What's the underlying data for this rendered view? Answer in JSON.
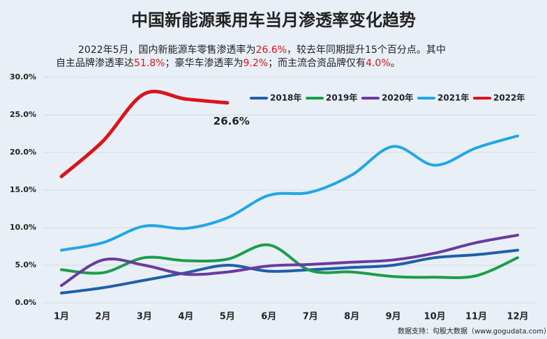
{
  "chart_data": {
    "type": "line",
    "title": "中国新能源乘用车当月渗透率变化趋势",
    "subtitle": [
      [
        "2022年5月，国内新能源车零售渗透率为",
        "26.6%",
        "，较去年同期提升15个百分点。其中"
      ],
      [
        "自主品牌渗透率达",
        "51.8%",
        "；豪华车渗透率为",
        "9.2%",
        "；而主流合资品牌仅有",
        "4.0%",
        "。"
      ]
    ],
    "highlight_color": "#d9141b",
    "categories": [
      "1月",
      "2月",
      "3月",
      "4月",
      "5月",
      "6月",
      "7月",
      "8月",
      "9月",
      "10月",
      "11月",
      "12月"
    ],
    "series": [
      {
        "name": "2018年",
        "color": "#1f5fa8",
        "values": [
          1.3,
          2.0,
          3.0,
          4.0,
          5.0,
          4.2,
          4.4,
          4.7,
          5.0,
          6.0,
          6.4,
          7.0
        ]
      },
      {
        "name": "2019年",
        "color": "#1a9e4a",
        "values": [
          4.4,
          4.0,
          6.0,
          5.6,
          5.8,
          7.7,
          4.3,
          4.1,
          3.5,
          3.4,
          3.6,
          6.0
        ]
      },
      {
        "name": "2020年",
        "color": "#6a3a9e",
        "values": [
          2.3,
          5.7,
          5.0,
          3.8,
          4.1,
          4.9,
          5.1,
          5.4,
          5.7,
          6.6,
          8.0,
          9.0
        ]
      },
      {
        "name": "2021年",
        "color": "#22a6e6",
        "values": [
          7.0,
          8.0,
          10.2,
          9.9,
          11.3,
          14.3,
          14.7,
          17.0,
          20.8,
          18.3,
          20.6,
          22.2
        ]
      },
      {
        "name": "2022年",
        "color": "#d9141b",
        "values": [
          16.8,
          21.5,
          27.8,
          27.1,
          26.6,
          null,
          null,
          null,
          null,
          null,
          null,
          null
        ]
      }
    ],
    "annotation": "26.6%",
    "source": "数据支持：勾股大数据（www.gogudata.com）",
    "ylim": [
      0,
      30
    ],
    "yticks": [
      {
        "value": 0,
        "label": "0.0%"
      },
      {
        "value": 5,
        "label": "5.0%"
      },
      {
        "value": 10,
        "label": "10.0%"
      },
      {
        "value": 15,
        "label": "15.0%"
      },
      {
        "value": 20,
        "label": "20.0%"
      },
      {
        "value": 25,
        "label": "25.0%"
      },
      {
        "value": 30,
        "label": "30.0%"
      }
    ],
    "grid": true,
    "legend": "top"
  }
}
